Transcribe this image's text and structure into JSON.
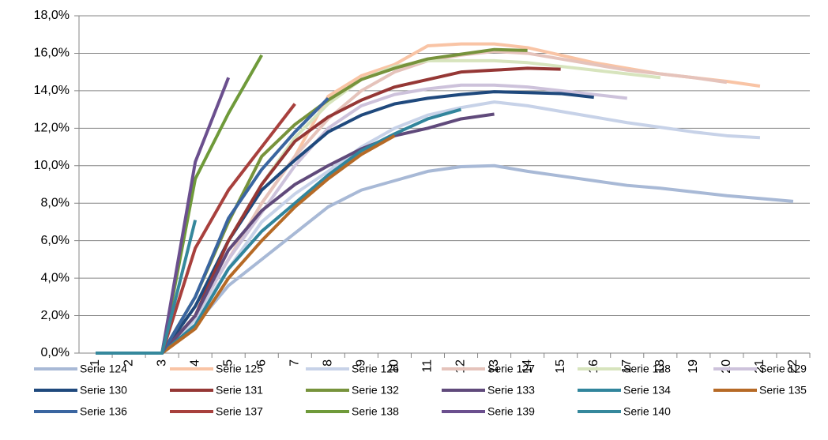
{
  "chart_data": {
    "type": "line",
    "categories": [
      "1",
      "2",
      "3",
      "4",
      "5",
      "6",
      "7",
      "8",
      "9",
      "10",
      "11",
      "12",
      "13",
      "14",
      "15",
      "16",
      "17",
      "18",
      "19",
      "20",
      "21",
      "22"
    ],
    "ylim": [
      0,
      18
    ],
    "yticks": [
      {
        "value": 0,
        "label": "0,0%"
      },
      {
        "value": 2,
        "label": "2,0%"
      },
      {
        "value": 4,
        "label": "4,0%"
      },
      {
        "value": 6,
        "label": "6,0%"
      },
      {
        "value": 8,
        "label": "8,0%"
      },
      {
        "value": 10,
        "label": "10,0%"
      },
      {
        "value": 12,
        "label": "12,0%"
      },
      {
        "value": 14,
        "label": "14,0%"
      },
      {
        "value": 16,
        "label": "16,0%"
      },
      {
        "value": 18,
        "label": "18,0%"
      }
    ],
    "grid": true,
    "legend": "bottom",
    "series": [
      {
        "name": "Serie 124",
        "color": "#a8b9d6",
        "values": [
          0,
          0,
          0,
          1.5,
          3.6,
          5.0,
          6.4,
          7.8,
          8.7,
          9.2,
          9.7,
          9.95,
          10.0,
          9.7,
          9.45,
          9.2,
          8.95,
          8.8,
          8.6,
          8.4,
          8.25,
          8.1
        ]
      },
      {
        "name": "Serie 125",
        "color": "#f9c4a5",
        "values": [
          0,
          0,
          0,
          2,
          5,
          8,
          10.5,
          13.7,
          14.8,
          15.4,
          16.4,
          16.5,
          16.5,
          16.3,
          15.9,
          15.5,
          15.2,
          14.9,
          14.7,
          14.5,
          14.25,
          null
        ]
      },
      {
        "name": "Serie 126",
        "color": "#c7d2e8",
        "values": [
          0,
          0,
          0,
          1.8,
          4.5,
          7,
          8.5,
          9.7,
          11,
          12,
          12.7,
          13.1,
          13.4,
          13.2,
          12.9,
          12.6,
          12.3,
          12.05,
          11.8,
          11.6,
          11.5,
          null
        ]
      },
      {
        "name": "Serie 127",
        "color": "#e5c3bb",
        "values": [
          0,
          0,
          0,
          2,
          5,
          8,
          10.5,
          12.5,
          14,
          15,
          15.6,
          15.9,
          16.1,
          16,
          15.7,
          15.4,
          15.1,
          14.9,
          14.7,
          14.45,
          null,
          null
        ]
      },
      {
        "name": "Serie 128",
        "color": "#d7e4bd",
        "values": [
          0,
          0,
          0,
          2.5,
          6,
          9,
          11.5,
          13.3,
          14.6,
          15.3,
          15.6,
          15.6,
          15.6,
          15.5,
          15.3,
          15.1,
          14.9,
          14.7,
          null,
          null,
          null,
          null
        ]
      },
      {
        "name": "Serie 129",
        "color": "#cdc2db",
        "values": [
          0,
          0,
          0,
          2,
          5,
          7.5,
          10,
          12,
          13.2,
          13.8,
          14.1,
          14.3,
          14.3,
          14.2,
          14,
          13.8,
          13.6,
          null,
          null,
          null,
          null,
          null
        ]
      },
      {
        "name": "Serie 130",
        "color": "#1f497d",
        "values": [
          0,
          0,
          0,
          2.5,
          6,
          8.7,
          10.3,
          11.8,
          12.7,
          13.3,
          13.6,
          13.8,
          13.95,
          13.9,
          13.85,
          13.65,
          null,
          null,
          null,
          null,
          null,
          null
        ]
      },
      {
        "name": "Serie 131",
        "color": "#953735",
        "values": [
          0,
          0,
          0,
          2,
          6,
          9,
          11.3,
          12.6,
          13.5,
          14.2,
          14.6,
          15,
          15.1,
          15.2,
          15.15,
          null,
          null,
          null,
          null,
          null,
          null,
          null
        ]
      },
      {
        "name": "Serie 132",
        "color": "#77933c",
        "values": [
          0,
          0,
          0,
          3,
          7,
          10.5,
          12.2,
          13.5,
          14.6,
          15.2,
          15.7,
          15.95,
          16.2,
          16.15,
          null,
          null,
          null,
          null,
          null,
          null,
          null,
          null
        ]
      },
      {
        "name": "Serie 133",
        "color": "#604a7b",
        "values": [
          0,
          0,
          0,
          2,
          5.5,
          7.6,
          9,
          10,
          10.9,
          11.6,
          12,
          12.5,
          12.75,
          null,
          null,
          null,
          null,
          null,
          null,
          null,
          null,
          null
        ]
      },
      {
        "name": "Serie 134",
        "color": "#31859c",
        "values": [
          0,
          0,
          0,
          1.5,
          4.5,
          6.5,
          8,
          9.5,
          10.8,
          11.7,
          12.5,
          13,
          null,
          null,
          null,
          null,
          null,
          null,
          null,
          null,
          null,
          null
        ]
      },
      {
        "name": "Serie 135",
        "color": "#b66a26",
        "values": [
          0,
          0,
          0,
          1.3,
          4,
          6,
          7.8,
          9.3,
          10.6,
          11.6,
          null,
          null,
          null,
          null,
          null,
          null,
          null,
          null,
          null,
          null,
          null,
          null
        ]
      },
      {
        "name": "Serie 136",
        "color": "#3a65a0",
        "values": [
          0,
          0,
          0,
          3,
          7.2,
          9.8,
          11.8,
          13.6,
          null,
          null,
          null,
          null,
          null,
          null,
          null,
          null,
          null,
          null,
          null,
          null,
          null,
          null
        ]
      },
      {
        "name": "Serie 137",
        "color": "#a8403d",
        "values": [
          0,
          0,
          0,
          5.6,
          8.7,
          11,
          13.3,
          null,
          null,
          null,
          null,
          null,
          null,
          null,
          null,
          null,
          null,
          null,
          null,
          null,
          null,
          null
        ]
      },
      {
        "name": "Serie 138",
        "color": "#6f9a3a",
        "values": [
          0,
          0,
          0,
          9.3,
          12.8,
          15.9,
          null,
          null,
          null,
          null,
          null,
          null,
          null,
          null,
          null,
          null,
          null,
          null,
          null,
          null,
          null,
          null
        ]
      },
      {
        "name": "Serie 139",
        "color": "#6b4f8e",
        "values": [
          0,
          0,
          0,
          10.2,
          14.7,
          null,
          null,
          null,
          null,
          null,
          null,
          null,
          null,
          null,
          null,
          null,
          null,
          null,
          null,
          null,
          null,
          null
        ]
      },
      {
        "name": "Serie 140",
        "color": "#35889c",
        "values": [
          0,
          0,
          0,
          7.1,
          null,
          null,
          null,
          null,
          null,
          null,
          null,
          null,
          null,
          null,
          null,
          null,
          null,
          null,
          null,
          null,
          null,
          null
        ]
      }
    ]
  }
}
